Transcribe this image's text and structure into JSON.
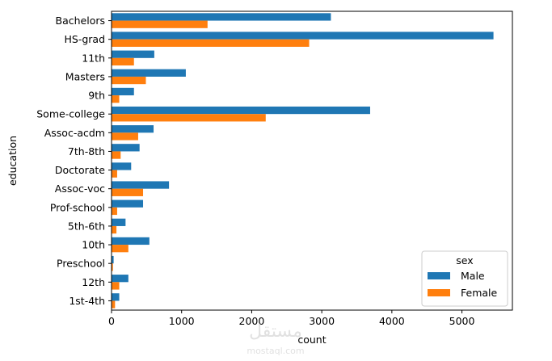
{
  "chart_data": {
    "type": "bar",
    "orientation": "horizontal",
    "categories": [
      "Bachelors",
      "HS-grad",
      "11th",
      "Masters",
      "9th",
      "Some-college",
      "Assoc-acdm",
      "7th-8th",
      "Doctorate",
      "Assoc-voc",
      "Prof-school",
      "5th-6th",
      "10th",
      "Preschool",
      "12th",
      "1st-4th"
    ],
    "series": [
      {
        "name": "Male",
        "color": "#1f77b4",
        "values": [
          3130,
          5450,
          610,
          1060,
          320,
          3690,
          600,
          400,
          280,
          820,
          450,
          200,
          540,
          30,
          240,
          110
        ]
      },
      {
        "name": "Female",
        "color": "#ff7f0e",
        "values": [
          1370,
          2820,
          320,
          490,
          110,
          2200,
          380,
          130,
          80,
          450,
          80,
          70,
          240,
          20,
          110,
          50
        ]
      }
    ],
    "xlabel": "count",
    "ylabel": "education",
    "xlim": [
      0,
      5720
    ],
    "xticks": [
      0,
      1000,
      2000,
      3000,
      4000,
      5000
    ],
    "legend": {
      "title": "sex",
      "placement": "bottom-right"
    },
    "grid": false
  },
  "watermark": {
    "logo_text": "مستقل",
    "site_text": "mostaql.com"
  }
}
